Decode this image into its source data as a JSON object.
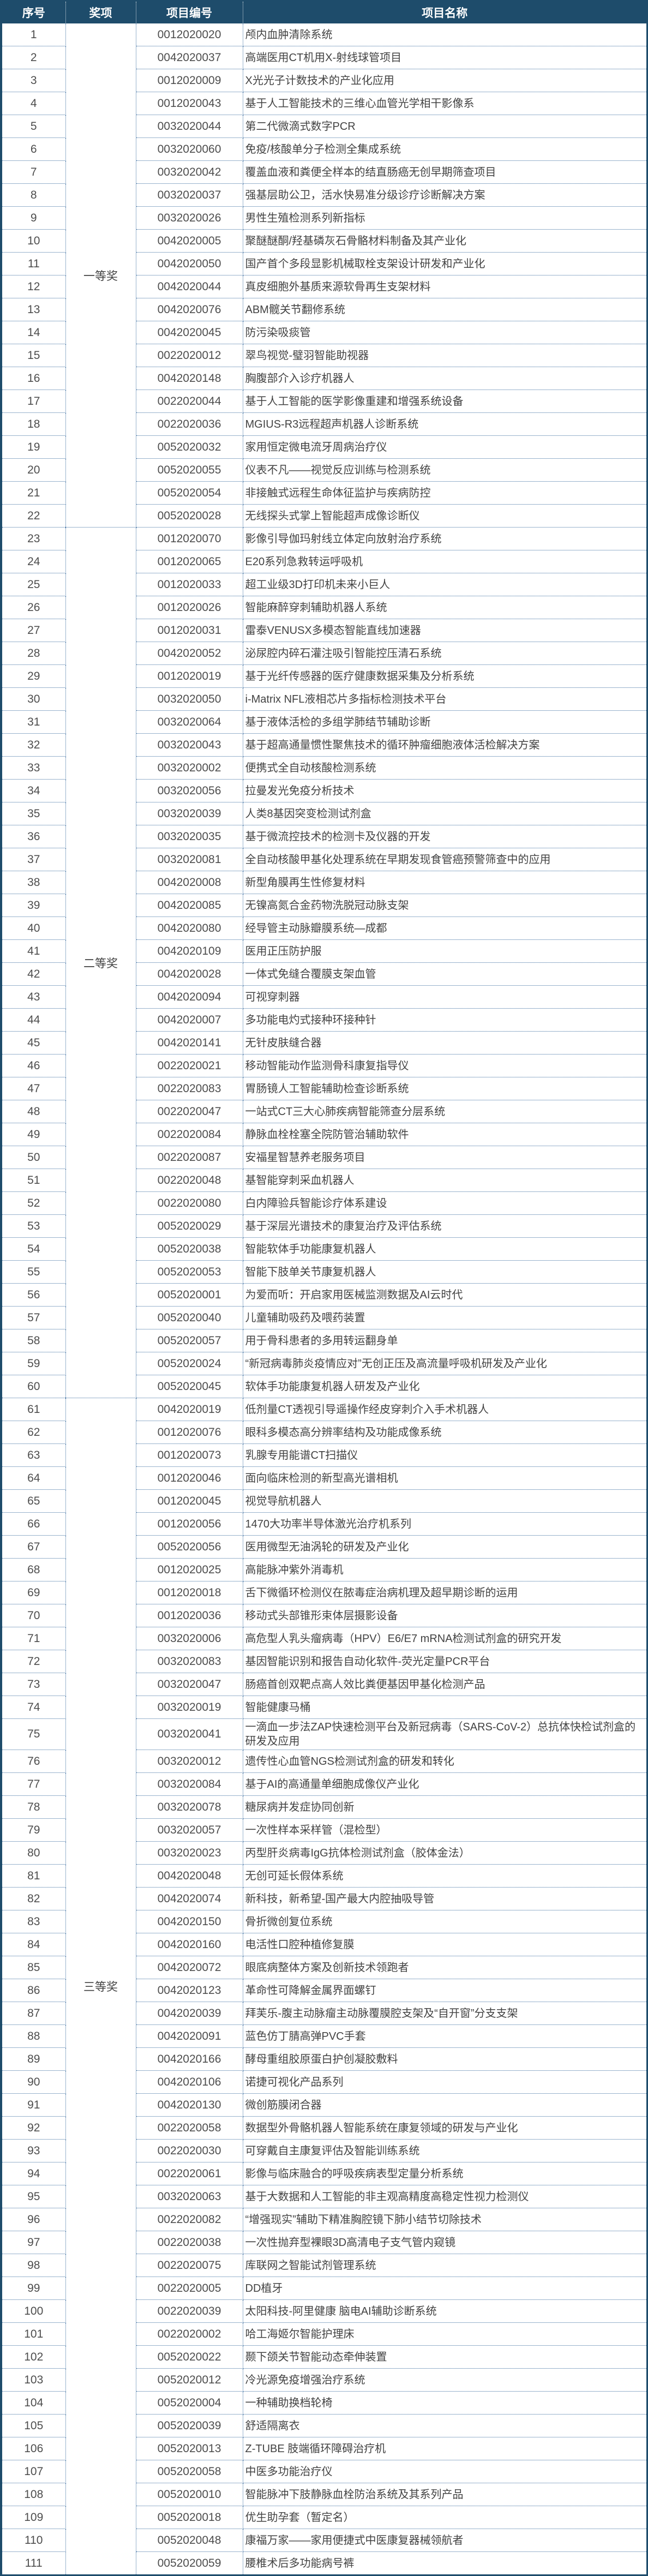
{
  "table": {
    "columns": [
      "序号",
      "奖项",
      "项目编号",
      "项目名称"
    ],
    "awards": [
      {
        "label": "一等奖",
        "start": 1,
        "end": 22
      },
      {
        "label": "二等奖",
        "start": 23,
        "end": 60
      },
      {
        "label": "三等奖",
        "start": 61,
        "end": 111
      }
    ],
    "rows": [
      {
        "no": 1,
        "code": "0012020020",
        "name": "颅内血肿清除系统"
      },
      {
        "no": 2,
        "code": "0042020037",
        "name": "高端医用CT机用X-射线球管项目"
      },
      {
        "no": 3,
        "code": "0012020009",
        "name": "X光光子计数技术的产业化应用"
      },
      {
        "no": 4,
        "code": "0012020043",
        "name": "基于人工智能技术的三维心血管光学相干影像系"
      },
      {
        "no": 5,
        "code": "0032020044",
        "name": "第二代微滴式数字PCR"
      },
      {
        "no": 6,
        "code": "0032020060",
        "name": "免疫/核酸单分子检测全集成系统"
      },
      {
        "no": 7,
        "code": "0032020042",
        "name": "覆盖血液和粪便全样本的结直肠癌无创早期筛查项目"
      },
      {
        "no": 8,
        "code": "0032020037",
        "name": "强基层助公卫，活水快易准分级诊疗诊断解决方案"
      },
      {
        "no": 9,
        "code": "0032020026",
        "name": "男性生殖检测系列新指标"
      },
      {
        "no": 10,
        "code": "0042020005",
        "name": "聚醚醚酮/羟基磷灰石骨骼材料制备及其产业化"
      },
      {
        "no": 11,
        "code": "0042020050",
        "name": "国产首个多段显影机械取栓支架设计研发和产业化"
      },
      {
        "no": 12,
        "code": "0042020044",
        "name": "真皮细胞外基质来源软骨再生支架材料"
      },
      {
        "no": 13,
        "code": "0042020076",
        "name": "ABM髋关节翻修系统"
      },
      {
        "no": 14,
        "code": "0042020045",
        "name": "防污染吸痰管"
      },
      {
        "no": 15,
        "code": "0022020012",
        "name": "翠鸟视觉-璧羽智能助视器"
      },
      {
        "no": 16,
        "code": "0042020148",
        "name": "胸腹部介入诊疗机器人"
      },
      {
        "no": 17,
        "code": "0022020044",
        "name": "基于人工智能的医学影像重建和增强系统设备"
      },
      {
        "no": 18,
        "code": "0022020036",
        "name": "MGIUS-R3远程超声机器人诊断系统"
      },
      {
        "no": 19,
        "code": "0052020032",
        "name": "家用恒定微电流牙周病治疗仪"
      },
      {
        "no": 20,
        "code": "0052020055",
        "name": "仪表不凡——视觉反应训练与检测系统"
      },
      {
        "no": 21,
        "code": "0052020054",
        "name": "非接触式远程生命体征监护与疾病防控"
      },
      {
        "no": 22,
        "code": "0052020028",
        "name": "无线探头式掌上智能超声成像诊断仪"
      },
      {
        "no": 23,
        "code": "0012020070",
        "name": "影像引导伽玛射线立体定向放射治疗系统"
      },
      {
        "no": 24,
        "code": "0012020065",
        "name": "E20系列急救转运呼吸机"
      },
      {
        "no": 25,
        "code": "0012020033",
        "name": "超工业级3D打印机未来小巨人"
      },
      {
        "no": 26,
        "code": "0012020026",
        "name": "智能麻醉穿刺辅助机器人系统"
      },
      {
        "no": 27,
        "code": "0012020031",
        "name": "雷泰VENUSX多模态智能直线加速器"
      },
      {
        "no": 28,
        "code": "0042020052",
        "name": "泌尿腔内碎石灌注吸引智能控压清石系统"
      },
      {
        "no": 29,
        "code": "0012020019",
        "name": "基于光纤传感器的医疗健康数据采集及分析系统"
      },
      {
        "no": 30,
        "code": "0032020050",
        "name": "i-Matrix NFL液相芯片多指标检测技术平台"
      },
      {
        "no": 31,
        "code": "0032020064",
        "name": "基于液体活检的多组学肺结节辅助诊断"
      },
      {
        "no": 32,
        "code": "0032020043",
        "name": "基于超高通量惯性聚焦技术的循环肿瘤细胞液体活检解决方案"
      },
      {
        "no": 33,
        "code": "0032020002",
        "name": "便携式全自动核酸检测系统"
      },
      {
        "no": 34,
        "code": "0032020056",
        "name": "拉曼发光免疫分析技术"
      },
      {
        "no": 35,
        "code": "0032020039",
        "name": "人类8基因突变检测试剂盒"
      },
      {
        "no": 36,
        "code": "0032020035",
        "name": "基于微流控技术的检测卡及仪器的开发"
      },
      {
        "no": 37,
        "code": "0032020081",
        "name": "全自动核酸甲基化处理系统在早期发现食管癌预警筛查中的应用"
      },
      {
        "no": 38,
        "code": "0042020008",
        "name": "新型角膜再生性修复材料"
      },
      {
        "no": 39,
        "code": "0042020085",
        "name": "无镍高氮合金药物洗脱冠动脉支架"
      },
      {
        "no": 40,
        "code": "0042020080",
        "name": "经导管主动脉瓣膜系统—成都"
      },
      {
        "no": 41,
        "code": "0042020109",
        "name": "医用正压防护服"
      },
      {
        "no": 42,
        "code": "0042020028",
        "name": "一体式免缝合覆膜支架血管"
      },
      {
        "no": 43,
        "code": "0042020094",
        "name": "可视穿刺器"
      },
      {
        "no": 44,
        "code": "0042020007",
        "name": "多功能电灼式接种环接种针"
      },
      {
        "no": 45,
        "code": "0042020141",
        "name": "无针皮肤缝合器"
      },
      {
        "no": 46,
        "code": "0022020021",
        "name": "移动智能动作监测骨科康复指导仪"
      },
      {
        "no": 47,
        "code": "0022020083",
        "name": "胃肠镜人工智能辅助检查诊断系统"
      },
      {
        "no": 48,
        "code": "0022020047",
        "name": "一站式CT三大心肺疾病智能筛查分层系统"
      },
      {
        "no": 49,
        "code": "0022020084",
        "name": "静脉血栓栓塞全院防管治辅助软件"
      },
      {
        "no": 50,
        "code": "0022020087",
        "name": "安福星智慧养老服务项目"
      },
      {
        "no": 51,
        "code": "0022020048",
        "name": "基智能穿刺采血机器人"
      },
      {
        "no": 52,
        "code": "0022020080",
        "name": "白内障验兵智能诊疗体系建设"
      },
      {
        "no": 53,
        "code": "0052020029",
        "name": "基于深层光谱技术的康复治疗及评估系统"
      },
      {
        "no": 54,
        "code": "0052020038",
        "name": "智能软体手功能康复机器人"
      },
      {
        "no": 55,
        "code": "0052020053",
        "name": "智能下肢单关节康复机器人"
      },
      {
        "no": 56,
        "code": "0052020001",
        "name": "为爱而听：开启家用医械监测数据及AI云时代"
      },
      {
        "no": 57,
        "code": "0052020040",
        "name": "儿童辅助吸药及喂药装置"
      },
      {
        "no": 58,
        "code": "0052020057",
        "name": "用于骨科患者的多用转运翻身单"
      },
      {
        "no": 59,
        "code": "0052020024",
        "name": "“新冠病毒肺炎疫情应对”无创正压及高流量呼吸机研发及产业化"
      },
      {
        "no": 60,
        "code": "0052020045",
        "name": "软体手功能康复机器人研发及产业化"
      },
      {
        "no": 61,
        "code": "0042020019",
        "name": "低剂量CT透视引导遥操作经皮穿刺介入手术机器人"
      },
      {
        "no": 62,
        "code": "0012020076",
        "name": "眼科多模态高分辨率结构及功能成像系统"
      },
      {
        "no": 63,
        "code": "0012020073",
        "name": "乳腺专用能谱CT扫描仪"
      },
      {
        "no": 64,
        "code": "0012020046",
        "name": "面向临床检测的新型高光谱相机"
      },
      {
        "no": 65,
        "code": "0012020045",
        "name": "视觉导航机器人"
      },
      {
        "no": 66,
        "code": "0012020056",
        "name": "1470大功率半导体激光治疗机系列"
      },
      {
        "no": 67,
        "code": "0052020056",
        "name": "医用微型无油涡轮的研发及产业化"
      },
      {
        "no": 68,
        "code": "0012020025",
        "name": "高能脉冲紫外消毒机"
      },
      {
        "no": 69,
        "code": "0012020018",
        "name": "舌下微循环检测仪在脓毒症治病机理及超早期诊断的运用"
      },
      {
        "no": 70,
        "code": "0012020036",
        "name": "移动式头部锥形束体层摄影设备"
      },
      {
        "no": 71,
        "code": "0032020006",
        "name": "高危型人乳头瘤病毒（HPV）E6/E7 mRNA检测试剂盒的研究开发"
      },
      {
        "no": 72,
        "code": "0032020083",
        "name": "基因智能识别和报告自动化软件-荧光定量PCR平台"
      },
      {
        "no": 73,
        "code": "0032020047",
        "name": "肠癌首创双靶点高人效比粪便基因甲基化检测产品"
      },
      {
        "no": 74,
        "code": "0032020019",
        "name": "智能健康马桶"
      },
      {
        "no": 75,
        "code": "0032020041",
        "name": "一滴血一步法ZAP快速检测平台及新冠病毒（SARS-CoV-2）总抗体快检试剂盒的研发及应用"
      },
      {
        "no": 76,
        "code": "0032020012",
        "name": "遗传性心血管NGS检测试剂盒的研发和转化"
      },
      {
        "no": 77,
        "code": "0032020084",
        "name": "基于AI的高通量单细胞成像仪产业化"
      },
      {
        "no": 78,
        "code": "0032020078",
        "name": "糖尿病并发症协同创新"
      },
      {
        "no": 79,
        "code": "0032020057",
        "name": "一次性样本采样管（混检型）"
      },
      {
        "no": 80,
        "code": "0032020023",
        "name": "丙型肝炎病毒IgG抗体检测试剂盒（胶体金法）"
      },
      {
        "no": 81,
        "code": "0042020048",
        "name": "无创可延长假体系统"
      },
      {
        "no": 82,
        "code": "0042020074",
        "name": "新科技，新希望-国产最大内腔抽吸导管"
      },
      {
        "no": 83,
        "code": "0042020150",
        "name": "骨折微创复位系统"
      },
      {
        "no": 84,
        "code": "0042020160",
        "name": "电活性口腔种植修复膜"
      },
      {
        "no": 85,
        "code": "0042020072",
        "name": "眼底病整体方案及创新技术领跑者"
      },
      {
        "no": 86,
        "code": "0042020123",
        "name": "革命性可降解金属界面螺钉"
      },
      {
        "no": 87,
        "code": "0042020039",
        "name": "拜芙乐-腹主动脉瘤主动脉覆膜腔支架及“自开窗”分支支架"
      },
      {
        "no": 88,
        "code": "0042020091",
        "name": "蓝色仿丁腈高弹PVC手套"
      },
      {
        "no": 89,
        "code": "0042020166",
        "name": "酵母重组胶原蛋白护创凝胶敷料"
      },
      {
        "no": 90,
        "code": "0042020106",
        "name": "诺捷可视化产品系列"
      },
      {
        "no": 91,
        "code": "0042020130",
        "name": "微创筋膜闭合器"
      },
      {
        "no": 92,
        "code": "0022020058",
        "name": "数据型外骨骼机器人智能系统在康复领域的研发与产业化"
      },
      {
        "no": 93,
        "code": "0022020030",
        "name": "可穿戴自主康复评估及智能训练系统"
      },
      {
        "no": 94,
        "code": "0022020061",
        "name": "影像与临床融合的呼吸疾病表型定量分析系统"
      },
      {
        "no": 95,
        "code": "0032020063",
        "name": "基于大数据和人工智能的非主观高精度高稳定性视力检测仪"
      },
      {
        "no": 96,
        "code": "0022020082",
        "name": "“增强现实”辅助下精准胸腔镜下肺小结节切除技术"
      },
      {
        "no": 97,
        "code": "0022020038",
        "name": "一次性抛弃型裸眼3D高清电子支气管内窥镜"
      },
      {
        "no": 98,
        "code": "0022020075",
        "name": "库联网之智能试剂管理系统"
      },
      {
        "no": 99,
        "code": "0022020005",
        "name": "DD植牙"
      },
      {
        "no": 100,
        "code": "0022020039",
        "name": "太阳科技-阿里健康 脑电AI辅助诊断系统"
      },
      {
        "no": 101,
        "code": "0022020002",
        "name": "哈工海姬尔智能护理床"
      },
      {
        "no": 102,
        "code": "0052020022",
        "name": "颞下颌关节智能动态牵伸装置"
      },
      {
        "no": 103,
        "code": "0052020012",
        "name": "冷光源免疫增强治疗系统"
      },
      {
        "no": 104,
        "code": "0052020004",
        "name": "一种辅助换档轮椅"
      },
      {
        "no": 105,
        "code": "0052020039",
        "name": "舒适隔离衣"
      },
      {
        "no": 106,
        "code": "0052020013",
        "name": "Z-TUBE 肢端循环障碍治疗机"
      },
      {
        "no": 107,
        "code": "0052020058",
        "name": "中医多功能治疗仪"
      },
      {
        "no": 108,
        "code": "0052020010",
        "name": "智能脉冲下肢静脉血栓防治系统及其系列产品"
      },
      {
        "no": 109,
        "code": "0052020018",
        "name": "优生助孕套（暂定名）"
      },
      {
        "no": 110,
        "code": "0052020048",
        "name": "康福万家——家用便捷式中医康复器械领航者"
      },
      {
        "no": 111,
        "code": "0052020059",
        "name": "腰椎术后多功能病号裤"
      }
    ]
  },
  "colors": {
    "header_bg": "#1e4c6b",
    "header_text": "#ffffff",
    "grid_dotted": "#35689c",
    "body_text": "#424242"
  }
}
